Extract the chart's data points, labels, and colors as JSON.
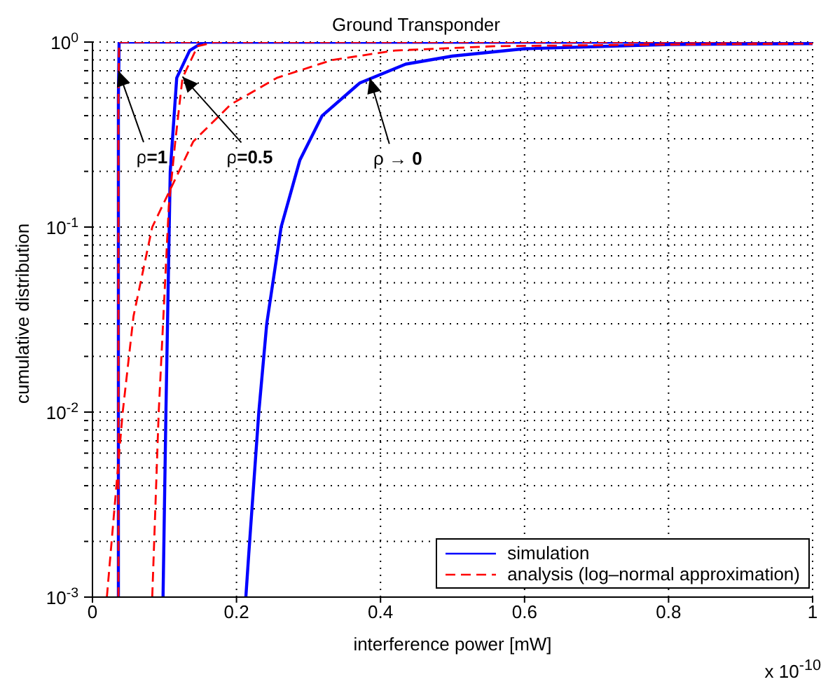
{
  "chart_data": {
    "type": "line",
    "title": "Ground Transponder",
    "xlabel": "interference power [mW]",
    "ylabel": "cumulative distribution",
    "log": "y",
    "grid": true,
    "legend": "bottom right",
    "xlim": [
      0,
      1
    ],
    "xticks": [
      0,
      0.2,
      0.4,
      0.6,
      0.8,
      1
    ],
    "ylim": [
      0.001,
      1
    ],
    "yticks": [
      {
        "value": 0.001,
        "label": "10$^{-3}$"
      },
      {
        "value": 0.002,
        "label": null
      },
      {
        "value": 0.003,
        "label": null
      },
      {
        "value": 0.004,
        "label": null
      },
      {
        "value": 0.005,
        "label": null
      },
      {
        "value": 0.006,
        "label": null
      },
      {
        "value": 0.007,
        "label": null
      },
      {
        "value": 0.008,
        "label": null
      },
      {
        "value": 0.009,
        "label": null
      },
      {
        "value": 0.01,
        "label": "10$^{-2}$"
      },
      {
        "value": 0.02,
        "label": null
      },
      {
        "value": 0.03,
        "label": null
      },
      {
        "value": 0.04,
        "label": null
      },
      {
        "value": 0.05,
        "label": null
      },
      {
        "value": 0.06,
        "label": null
      },
      {
        "value": 0.07,
        "label": null
      },
      {
        "value": 0.08,
        "label": null
      },
      {
        "value": 0.09,
        "label": null
      },
      {
        "value": 0.1,
        "label": "10$^{-1}$"
      },
      {
        "value": 0.2,
        "label": null
      },
      {
        "value": 0.3,
        "label": null
      },
      {
        "value": 0.4,
        "label": null
      },
      {
        "value": 0.5,
        "label": null
      },
      {
        "value": 0.6,
        "label": null
      },
      {
        "value": 0.7,
        "label": null
      },
      {
        "value": 0.8,
        "label": null
      },
      {
        "value": 0.9,
        "label": null
      },
      {
        "value": 1,
        "label": "10$^{0}$"
      }
    ],
    "series": [
      {
        "name": "simulation",
        "color": "#0000ff",
        "line_style": "solid",
        "x": [
          0.036,
          0.036,
          0.037,
          1
        ],
        "values": [
          0.001,
          0.5,
          1,
          1
        ]
      },
      {
        "name": "analysis (log–normal approximation)",
        "color": "#ff0000",
        "line_style": "dashed",
        "x": [
          0.036,
          0.036,
          0.037,
          1
        ],
        "values": [
          0.001,
          0.5,
          1,
          1
        ]
      },
      {
        "color": "#0000ff",
        "line_style": "solid",
        "x": [
          0.098,
          0.102,
          0.108,
          0.117,
          0.135,
          0.154,
          1
        ],
        "values": [
          0.001,
          0.01,
          0.2,
          0.64,
          0.9,
          1,
          1
        ]
      },
      {
        "color": "#ff0000",
        "line_style": "dashed",
        "x": [
          0.083,
          0.092,
          0.106,
          0.115,
          0.125,
          0.146,
          0.17,
          1
        ],
        "values": [
          0.001,
          0.01,
          0.13,
          0.29,
          0.64,
          0.95,
          1,
          1
        ]
      },
      {
        "color": "#0000ff",
        "line_style": "solid",
        "x": [
          0.213,
          0.217,
          0.231,
          0.242,
          0.262,
          0.288,
          0.319,
          0.371,
          0.435,
          0.5,
          0.6,
          0.8,
          1
        ],
        "values": [
          0.001,
          0.0017,
          0.01,
          0.03,
          0.1,
          0.23,
          0.4,
          0.6,
          0.76,
          0.84,
          0.92,
          0.97,
          0.98
        ]
      },
      {
        "color": "#ff0000",
        "line_style": "dashed",
        "x": [
          0.02,
          0.042,
          0.057,
          0.083,
          0.14,
          0.192,
          0.256,
          0.333,
          0.42,
          0.56,
          0.8,
          1
        ],
        "values": [
          0.001,
          0.01,
          0.033,
          0.1,
          0.29,
          0.46,
          0.64,
          0.8,
          0.9,
          0.95,
          0.97,
          0.98
        ]
      }
    ],
    "annotations": [
      {
        "text": "ρ=1",
        "x": 0.036,
        "y": 0.7
      },
      {
        "text": "ρ=0.5",
        "x": 0.125,
        "y": 0.65
      },
      {
        "text": "ρ → 0",
        "x": 0.385,
        "y": 0.64
      },
      "x 10$^{-10}$"
    ]
  }
}
